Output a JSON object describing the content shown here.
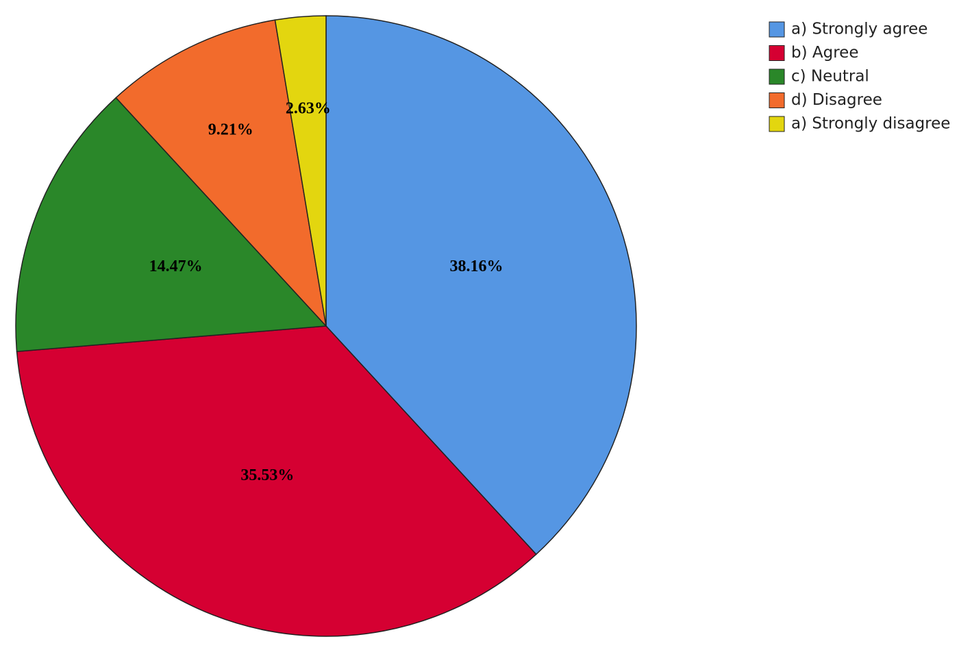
{
  "chart_data": {
    "type": "pie",
    "categories": [
      "a) Strongly agree",
      "b) Agree",
      "c) Neutral",
      "d) Disagree",
      "a) Strongly disagree"
    ],
    "values": [
      38.16,
      35.53,
      14.47,
      9.21,
      2.63
    ],
    "value_labels": [
      "38.16%",
      "35.53%",
      "14.47%",
      "9.21%",
      "2.63%"
    ],
    "colors": [
      "#5596e3",
      "#d50032",
      "#2a8729",
      "#f26b2c",
      "#e3d60f"
    ],
    "legend": "top-right"
  }
}
